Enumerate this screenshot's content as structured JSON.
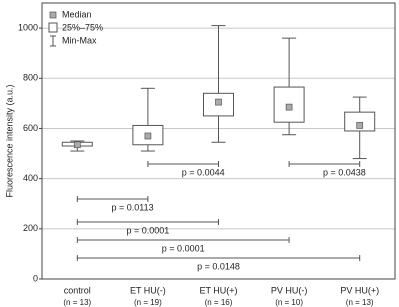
{
  "chart_data": {
    "type": "box",
    "y_label": "Fluorescence intensity (a.u.)",
    "categories": [
      "control",
      "ET HU(-)",
      "ET HU(+)",
      "PV HU(-)",
      "PV HU(+)"
    ],
    "n_labels": [
      "(n = 13)",
      "(n = 19)",
      "(n = 16)",
      "(n = 10)",
      "(n = 13)"
    ],
    "boxes": [
      {
        "median": 535,
        "q1": 530,
        "q3": 545,
        "min": 510,
        "max": 550
      },
      {
        "median": 570,
        "q1": 535,
        "q3": 612,
        "min": 510,
        "max": 760
      },
      {
        "median": 705,
        "q1": 650,
        "q3": 740,
        "min": 545,
        "max": 1010
      },
      {
        "median": 685,
        "q1": 625,
        "q3": 765,
        "min": 575,
        "max": 960
      },
      {
        "median": 612,
        "q1": 590,
        "q3": 665,
        "min": 480,
        "max": 725
      }
    ],
    "comparisons": [
      {
        "from": "ET HU(-)",
        "to": "ET HU(+)",
        "label": "p = 0.0044"
      },
      {
        "from": "PV HU(-)",
        "to": "PV HU(+)",
        "label": "p = 0.0438"
      },
      {
        "from": "control",
        "to": "ET HU(-)",
        "label": "p = 0.0113"
      },
      {
        "from": "control",
        "to": "ET HU(+)",
        "label": "p = 0.0001"
      },
      {
        "from": "control",
        "to": "PV HU(-)",
        "label": "p = 0.0001"
      },
      {
        "from": "control",
        "to": "PV HU(+)",
        "label": "p = 0.0148"
      }
    ],
    "legend": [
      "Median",
      "25%–75%",
      "Min-Max"
    ],
    "ylim": [
      0,
      1100
    ],
    "yticks": [
      0,
      200,
      400,
      600,
      800,
      1000
    ],
    "grid": true,
    "box_color": "#ffffff",
    "median_color": "#aaaaaa"
  }
}
